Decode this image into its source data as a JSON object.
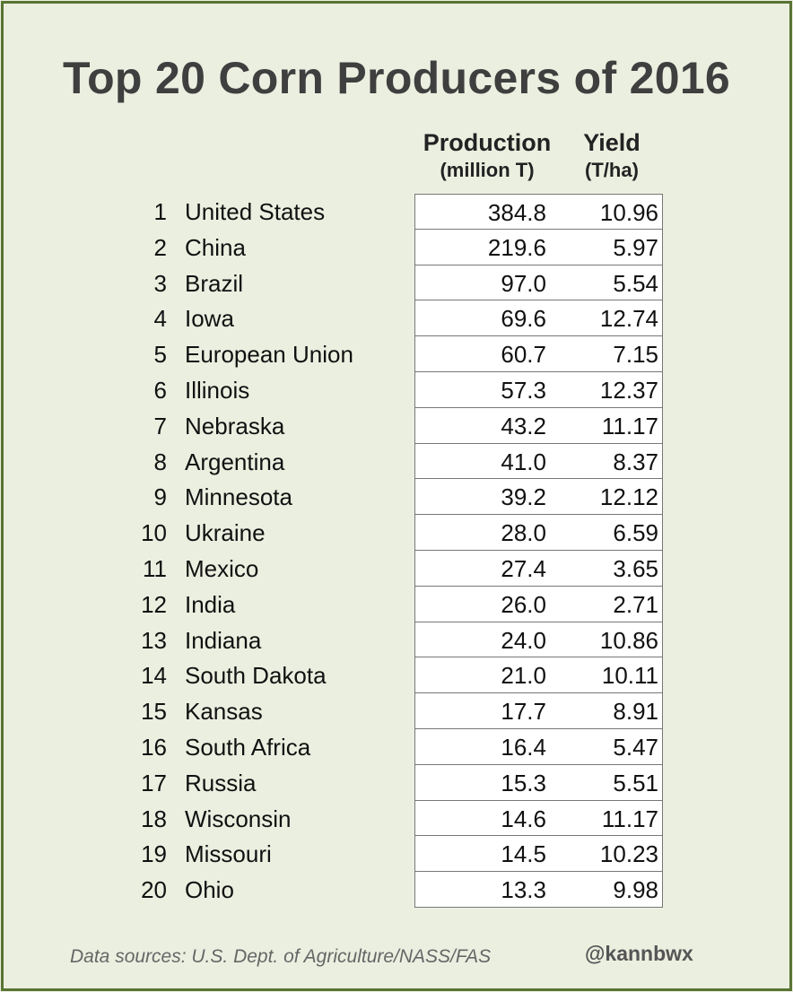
{
  "chart_data": {
    "type": "table",
    "title": "Top 20 Corn Producers of 2016",
    "columns": [
      {
        "label": "Production",
        "unit": "(million T)"
      },
      {
        "label": "Yield",
        "unit": "(T/ha)"
      }
    ],
    "rows": [
      {
        "rank": "1",
        "name": "United States",
        "production": "384.8",
        "yield": "10.96"
      },
      {
        "rank": "2",
        "name": "China",
        "production": "219.6",
        "yield": "5.97"
      },
      {
        "rank": "3",
        "name": "Brazil",
        "production": "97.0",
        "yield": "5.54"
      },
      {
        "rank": "4",
        "name": "Iowa",
        "production": "69.6",
        "yield": "12.74"
      },
      {
        "rank": "5",
        "name": "European Union",
        "production": "60.7",
        "yield": "7.15"
      },
      {
        "rank": "6",
        "name": "Illinois",
        "production": "57.3",
        "yield": "12.37"
      },
      {
        "rank": "7",
        "name": "Nebraska",
        "production": "43.2",
        "yield": "11.17"
      },
      {
        "rank": "8",
        "name": "Argentina",
        "production": "41.0",
        "yield": "8.37"
      },
      {
        "rank": "9",
        "name": "Minnesota",
        "production": "39.2",
        "yield": "12.12"
      },
      {
        "rank": "10",
        "name": "Ukraine",
        "production": "28.0",
        "yield": "6.59"
      },
      {
        "rank": "11",
        "name": "Mexico",
        "production": "27.4",
        "yield": "3.65"
      },
      {
        "rank": "12",
        "name": "India",
        "production": "26.0",
        "yield": "2.71"
      },
      {
        "rank": "13",
        "name": "Indiana",
        "production": "24.0",
        "yield": "10.86"
      },
      {
        "rank": "14",
        "name": "South Dakota",
        "production": "21.0",
        "yield": "10.11"
      },
      {
        "rank": "15",
        "name": "Kansas",
        "production": "17.7",
        "yield": "8.91"
      },
      {
        "rank": "16",
        "name": "South Africa",
        "production": "16.4",
        "yield": "5.47"
      },
      {
        "rank": "17",
        "name": "Russia",
        "production": "15.3",
        "yield": "5.51"
      },
      {
        "rank": "18",
        "name": "Wisconsin",
        "production": "14.6",
        "yield": "11.17"
      },
      {
        "rank": "19",
        "name": "Missouri",
        "production": "14.5",
        "yield": "10.23"
      },
      {
        "rank": "20",
        "name": "Ohio",
        "production": "13.3",
        "yield": "9.98"
      }
    ]
  },
  "footer": {
    "source": "Data sources: U.S. Dept. of Agriculture/NASS/FAS",
    "handle": "@kannbwx"
  },
  "colors": {
    "background": "#ebefe0",
    "border": "#5a7434",
    "title": "#3f3f3f"
  }
}
